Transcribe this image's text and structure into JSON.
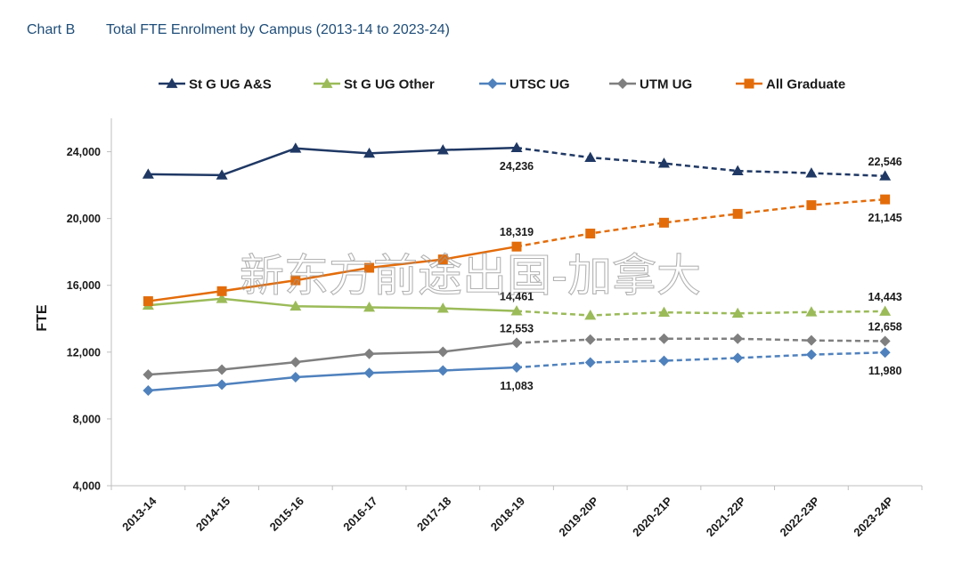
{
  "caption": {
    "label": "Chart B",
    "title": "Total FTE Enrolment by Campus (2013-14 to 2023-24)"
  },
  "watermark": "新东方前途出国-加拿大",
  "chart_data": {
    "type": "line",
    "title": "Total FTE Enrolment by Campus (2013-14 to 2023-24)",
    "xlabel": "",
    "ylabel": "FTE",
    "ylim": [
      4000,
      26000
    ],
    "yticks": [
      4000,
      8000,
      12000,
      16000,
      20000,
      24000
    ],
    "ytick_labels": [
      "4,000",
      "8,000",
      "12,000",
      "16,000",
      "20,000",
      "24,000"
    ],
    "grid": false,
    "legend_position": "top",
    "categories": [
      "2013-14",
      "2014-15",
      "2015-16",
      "2016-17",
      "2017-18",
      "2018-19",
      "2019-20P",
      "2020-21P",
      "2021-22P",
      "2022-23P",
      "2023-24P"
    ],
    "actual_through_index": 5,
    "projected_line_style": "dashed",
    "series": [
      {
        "name": "St G UG A&S",
        "color": "#1f3864",
        "marker": "triangle",
        "values": [
          22650,
          22600,
          24200,
          23900,
          24100,
          24236,
          23650,
          23300,
          22850,
          22720,
          22546
        ],
        "labels": [
          {
            "index": 5,
            "text": "24,236",
            "position": "below"
          },
          {
            "index": 10,
            "text": "22,546",
            "position": "above"
          }
        ]
      },
      {
        "name": "St G UG Other",
        "color": "#9bbb59",
        "marker": "triangle",
        "values": [
          14800,
          15200,
          14750,
          14680,
          14620,
          14461,
          14200,
          14380,
          14320,
          14400,
          14443
        ],
        "labels": [
          {
            "index": 5,
            "text": "14,461",
            "position": "above"
          },
          {
            "index": 10,
            "text": "14,443",
            "position": "above"
          }
        ]
      },
      {
        "name": "UTSC UG",
        "color": "#4f81bd",
        "marker": "diamond",
        "values": [
          9700,
          10050,
          10500,
          10750,
          10900,
          11083,
          11380,
          11480,
          11650,
          11850,
          11980
        ],
        "labels": [
          {
            "index": 5,
            "text": "11,083",
            "position": "below"
          },
          {
            "index": 10,
            "text": "11,980",
            "position": "below"
          }
        ]
      },
      {
        "name": "UTM UG",
        "color": "#7f7f7f",
        "marker": "diamond",
        "values": [
          10650,
          10950,
          11400,
          11900,
          12020,
          12553,
          12750,
          12800,
          12800,
          12700,
          12658
        ],
        "labels": [
          {
            "index": 5,
            "text": "12,553",
            "position": "above"
          },
          {
            "index": 10,
            "text": "12,658",
            "position": "above"
          }
        ]
      },
      {
        "name": "All Graduate",
        "color": "#e36c0a",
        "marker": "square",
        "values": [
          15050,
          15650,
          16300,
          17050,
          17550,
          18319,
          19100,
          19750,
          20280,
          20800,
          21145
        ],
        "labels": [
          {
            "index": 5,
            "text": "18,319",
            "position": "above"
          },
          {
            "index": 10,
            "text": "21,145",
            "position": "below"
          }
        ]
      }
    ]
  }
}
